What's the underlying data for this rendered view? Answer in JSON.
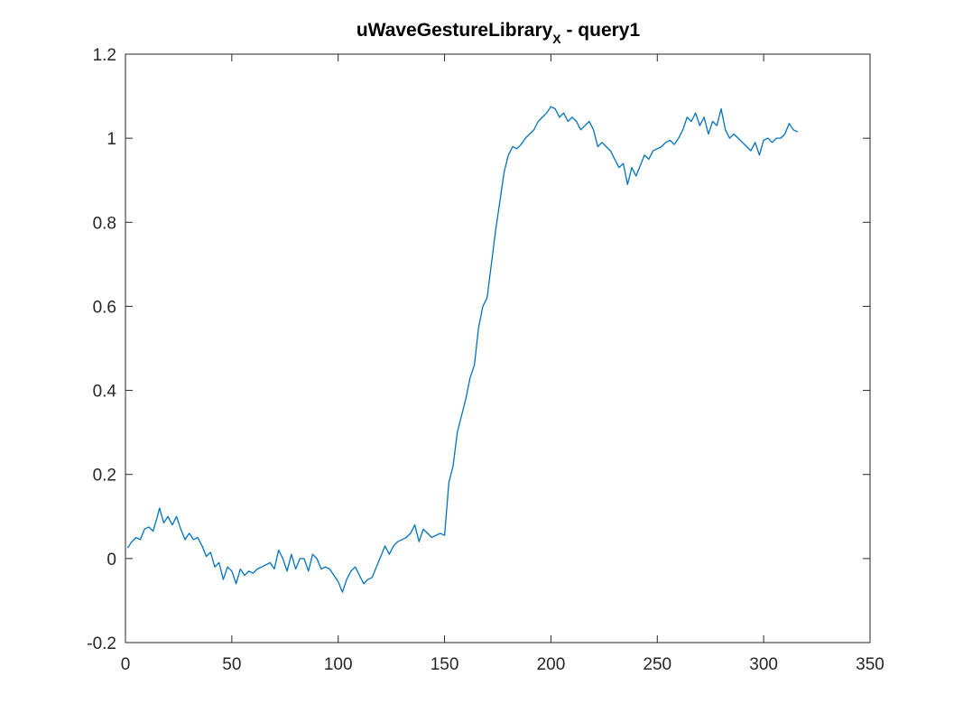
{
  "chart_data": {
    "type": "line",
    "title": {
      "main": "uWaveGestureLibrary",
      "subscript": "X",
      "suffix": " - query1"
    },
    "xlabel": "",
    "ylabel": "",
    "xlim": [
      0,
      350
    ],
    "ylim": [
      -0.2,
      1.2
    ],
    "xticks": [
      0,
      50,
      100,
      150,
      200,
      250,
      300,
      350
    ],
    "yticks": [
      -0.2,
      0,
      0.2,
      0.4,
      0.6,
      0.8,
      1,
      1.2
    ],
    "xtick_labels": [
      "0",
      "50",
      "100",
      "150",
      "200",
      "250",
      "300",
      "350"
    ],
    "ytick_labels": [
      "-0.2",
      "0",
      "0.2",
      "0.4",
      "0.6",
      "0.8",
      "1",
      "1.2"
    ],
    "grid": false,
    "line_color": "#0072BD",
    "series": [
      {
        "x": [
          1,
          3,
          5,
          7,
          9,
          11,
          13,
          15,
          16,
          18,
          20,
          22,
          24,
          26,
          28,
          30,
          32,
          34,
          36,
          38,
          40,
          42,
          44,
          46,
          48,
          50,
          52,
          54,
          56,
          58,
          60,
          62,
          64,
          66,
          68,
          70,
          72,
          74,
          76,
          78,
          80,
          82,
          84,
          86,
          88,
          90,
          92,
          94,
          96,
          98,
          100,
          102,
          104,
          106,
          108,
          110,
          112,
          114,
          116,
          118,
          120,
          122,
          124,
          126,
          128,
          130,
          132,
          134,
          136,
          138,
          140,
          142,
          144,
          146,
          148,
          150,
          152,
          154,
          156,
          158,
          160,
          162,
          164,
          166,
          168,
          170,
          172,
          174,
          176,
          178,
          180,
          182,
          184,
          186,
          188,
          190,
          192,
          194,
          196,
          198,
          200,
          202,
          204,
          206,
          208,
          210,
          212,
          214,
          216,
          218,
          220,
          222,
          224,
          226,
          228,
          230,
          232,
          234,
          236,
          238,
          240,
          242,
          244,
          246,
          248,
          250,
          252,
          254,
          256,
          258,
          260,
          262,
          264,
          266,
          268,
          270,
          272,
          274,
          276,
          278,
          280,
          282,
          284,
          286,
          288,
          290,
          292,
          294,
          296,
          298,
          300,
          302,
          304,
          306,
          308,
          310,
          312,
          314,
          316
        ],
        "y": [
          0.025,
          0.04,
          0.05,
          0.045,
          0.07,
          0.075,
          0.065,
          0.1,
          0.12,
          0.085,
          0.1,
          0.08,
          0.1,
          0.07,
          0.045,
          0.06,
          0.045,
          0.05,
          0.03,
          0.005,
          0.015,
          -0.02,
          -0.01,
          -0.05,
          -0.02,
          -0.03,
          -0.06,
          -0.025,
          -0.04,
          -0.03,
          -0.035,
          -0.025,
          -0.02,
          -0.015,
          -0.01,
          -0.025,
          0.02,
          0.0,
          -0.03,
          0.01,
          -0.025,
          0.0,
          0.0,
          -0.03,
          0.01,
          0.0,
          -0.025,
          -0.02,
          -0.025,
          -0.04,
          -0.055,
          -0.08,
          -0.05,
          -0.03,
          -0.02,
          -0.04,
          -0.06,
          -0.05,
          -0.045,
          -0.02,
          0.005,
          0.03,
          0.01,
          0.03,
          0.04,
          0.045,
          0.05,
          0.06,
          0.08,
          0.04,
          0.07,
          0.06,
          0.05,
          0.055,
          0.06,
          0.055,
          0.18,
          0.22,
          0.3,
          0.34,
          0.38,
          0.43,
          0.46,
          0.55,
          0.6,
          0.62,
          0.7,
          0.78,
          0.85,
          0.92,
          0.96,
          0.98,
          0.975,
          0.985,
          1.0,
          1.01,
          1.02,
          1.04,
          1.05,
          1.06,
          1.075,
          1.07,
          1.05,
          1.06,
          1.04,
          1.05,
          1.04,
          1.02,
          1.03,
          1.04,
          1.02,
          0.98,
          0.99,
          0.98,
          0.97,
          0.95,
          0.93,
          0.94,
          0.89,
          0.93,
          0.91,
          0.935,
          0.96,
          0.95,
          0.97,
          0.975,
          0.98,
          0.99,
          0.995,
          0.985,
          1.0,
          1.02,
          1.05,
          1.04,
          1.06,
          1.03,
          1.05,
          1.01,
          1.04,
          1.03,
          1.07,
          1.02,
          1.0,
          1.01,
          1.0,
          0.99,
          0.98,
          0.97,
          0.99,
          0.96,
          0.995,
          1.0,
          0.99,
          1.0,
          1.0,
          1.01,
          1.035,
          1.02,
          1.015
        ]
      }
    ]
  }
}
